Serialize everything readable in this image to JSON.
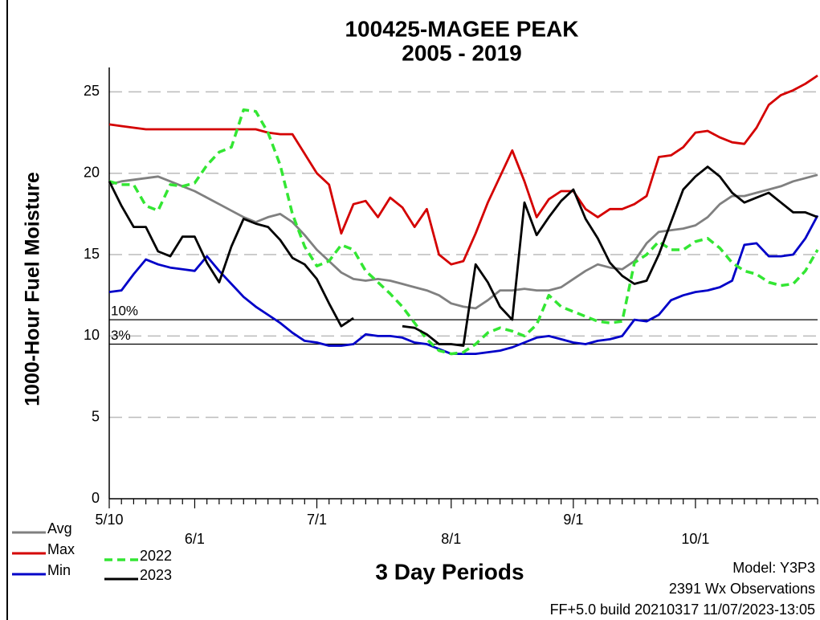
{
  "chart_data": {
    "type": "line",
    "title": "100425-MAGEE PEAK",
    "subtitle": "2005 - 2019",
    "y_label": "1000-Hour Fuel Moisture",
    "x_label": "3 Day Periods",
    "notes": [
      "Model: Y3P3",
      "2391 Wx Observations",
      "FF+5.0 build 20210317 11/07/2023-13:05"
    ],
    "categories": [
      "5/10",
      null,
      null,
      null,
      null,
      null,
      null,
      "6/1",
      null,
      null,
      null,
      null,
      null,
      null,
      null,
      null,
      null,
      "7/1",
      null,
      null,
      null,
      null,
      null,
      null,
      null,
      null,
      null,
      null,
      "8/1",
      null,
      null,
      null,
      null,
      null,
      null,
      null,
      null,
      null,
      "9/1",
      null,
      null,
      null,
      null,
      null,
      null,
      null,
      null,
      null,
      "10/1",
      null,
      null,
      null,
      null,
      null,
      null,
      null,
      null,
      null,
      null
    ],
    "ylim": [
      0,
      26.5
    ],
    "yticks": [
      0,
      5,
      10,
      15,
      20,
      25
    ],
    "grid": true,
    "reference_lines": [
      {
        "label": "10%",
        "value": 11.0
      },
      {
        "label": "3%",
        "value": 9.5
      }
    ],
    "series": [
      {
        "name": "Avg",
        "color": "#808080",
        "dashed": false,
        "values": [
          19.3,
          19.5,
          19.6,
          19.7,
          19.8,
          19.5,
          19.2,
          18.9,
          18.5,
          18.1,
          17.7,
          17.3,
          17.0,
          17.3,
          17.5,
          17.0,
          16.2,
          15.3,
          14.6,
          13.9,
          13.5,
          13.4,
          13.5,
          13.4,
          13.2,
          13.0,
          12.8,
          12.5,
          12.0,
          11.8,
          11.7,
          12.2,
          12.8,
          12.8,
          12.9,
          12.8,
          12.8,
          13.0,
          13.5,
          14.0,
          14.4,
          14.2,
          14.1,
          14.6,
          15.7,
          16.4,
          16.5,
          16.6,
          16.8,
          17.3,
          18.1,
          18.6,
          18.6,
          18.8,
          19.0,
          19.2,
          19.5,
          19.7,
          19.9
        ]
      },
      {
        "name": "Max",
        "color": "#d40000",
        "dashed": false,
        "values": [
          23,
          22.9,
          22.8,
          22.7,
          22.7,
          22.7,
          22.7,
          22.7,
          22.7,
          22.7,
          22.7,
          22.7,
          22.7,
          22.5,
          22.4,
          22.4,
          21.2,
          20,
          19.3,
          16.3,
          18.1,
          18.3,
          17.3,
          18.5,
          17.9,
          16.7,
          17.8,
          15,
          14.4,
          14.6,
          16.3,
          18.2,
          19.8,
          21.4,
          19.5,
          17.3,
          18.4,
          18.9,
          18.9,
          17.8,
          17.3,
          17.8,
          17.8,
          18.1,
          18.6,
          21,
          21.1,
          21.6,
          22.5,
          22.6,
          22.2,
          21.9,
          21.8,
          22.8,
          24.2,
          24.8,
          25.1,
          25.5,
          26
        ]
      },
      {
        "name": "Min",
        "color": "#0000c8",
        "dashed": false,
        "values": [
          12.7,
          12.8,
          13.8,
          14.7,
          14.4,
          14.2,
          14.1,
          14.0,
          14.9,
          14.0,
          13.2,
          12.4,
          11.8,
          11.3,
          10.8,
          10.2,
          9.7,
          9.6,
          9.4,
          9.4,
          9.5,
          10.1,
          10.0,
          10.0,
          9.9,
          9.6,
          9.5,
          9.2,
          8.9,
          8.9,
          8.9,
          9.0,
          9.1,
          9.3,
          9.6,
          9.9,
          10.0,
          9.8,
          9.6,
          9.5,
          9.7,
          9.8,
          10.0,
          11.0,
          10.9,
          11.3,
          12.2,
          12.5,
          12.7,
          12.8,
          13.0,
          13.4,
          15.6,
          15.7,
          14.9,
          14.9,
          15.0,
          16.0,
          17.4
        ]
      },
      {
        "name": "2022",
        "color": "#33e633",
        "dashed": true,
        "values": [
          19.5,
          19.3,
          19.3,
          18.0,
          17.7,
          19.3,
          19.2,
          19.4,
          20.5,
          21.3,
          21.6,
          23.9,
          23.8,
          22.5,
          20.5,
          17.5,
          15.5,
          14.3,
          14.6,
          15.6,
          15.3,
          14.0,
          13.3,
          12.6,
          11.8,
          10.8,
          9.8,
          9.1,
          8.9,
          9.0,
          9.5,
          10.2,
          10.5,
          10.3,
          10.0,
          10.7,
          12.5,
          11.8,
          11.5,
          11.2,
          10.9,
          10.8,
          10.9,
          14.5,
          15.0,
          15.8,
          15.3,
          15.3,
          15.8,
          16.0,
          15.4,
          14.5,
          14.0,
          13.8,
          13.3,
          13.1,
          13.2,
          14.0,
          15.3
        ]
      },
      {
        "name": "2023",
        "color": "#000000",
        "dashed": false,
        "values": [
          19.5,
          18.0,
          16.7,
          16.7,
          15.2,
          14.9,
          16.1,
          16.1,
          14.5,
          13.3,
          15.5,
          17.2,
          16.9,
          16.7,
          15.9,
          14.8,
          14.4,
          13.5,
          12.0,
          10.6,
          11.1,
          null,
          null,
          null,
          10.6,
          10.5,
          10.1,
          9.5,
          9.5,
          9.4,
          14.4,
          13.3,
          11.8,
          11.0,
          18.2,
          16.2,
          17.3,
          18.3,
          19.0,
          17.2,
          16.0,
          14.5,
          13.7,
          13.2,
          13.4,
          15.0,
          17.0,
          19.0,
          19.8,
          20.4,
          19.8,
          18.8,
          18.2,
          18.5,
          18.8,
          18.2,
          17.6,
          17.6,
          17.3
        ]
      }
    ]
  }
}
